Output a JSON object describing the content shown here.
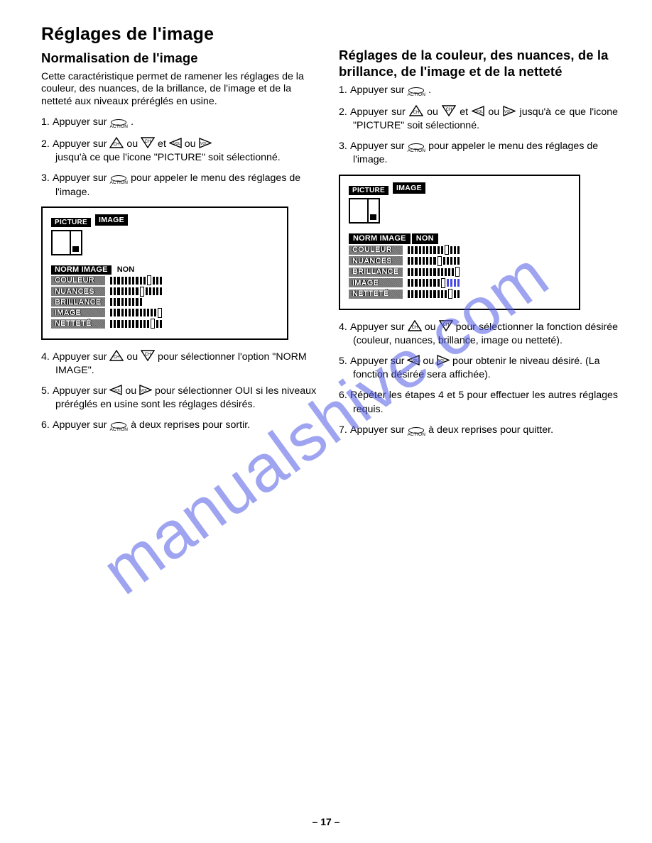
{
  "page_number": "– 17 –",
  "watermark": "manualshive.com",
  "icons": {
    "action_label": "ACTION"
  },
  "left": {
    "h1": "Réglages de l'image",
    "h2": "Normalisation de l'image",
    "intro": "Cette caractéristique permet de ramener les réglages de la couleur, des nuances, de la brillance, de l'image et de la netteté aux niveaux préréglés en usine.",
    "steps": {
      "s1a": "Appuyer sur ",
      "s1b": " .",
      "s2a": "Appuyer sur ",
      "s2b": " ou ",
      "s2c": "  et ",
      "s2d": " ou ",
      "s2e": " jusqu'à ce que l'icone \"PICTURE\" soit sélectionné.",
      "s3a": "Appuyer sur ",
      "s3b": "  pour appeler le menu des réglages de l'image.",
      "s4a": "Appuyer sur ",
      "s4b": " ou ",
      "s4c": "  pour sélectionner l'option \"NORM IMAGE\".",
      "s5a": "Appuyer sur ",
      "s5b": " ou  ",
      "s5c": "  pour sélectionner OUI si les niveaux préréglés en usine sont les réglages désirés.",
      "s6a": "Appuyer sur ",
      "s6b": "  à deux reprises pour sortir."
    },
    "osd": {
      "picture": "PICTURE",
      "image": "IMAGE",
      "norm": "NORM IMAGE",
      "non": "NON",
      "rows": [
        "COULEUR",
        "NUANCES",
        "BRILLANCE",
        "IMAGE",
        "NETTETÉ"
      ]
    }
  },
  "right": {
    "h2": "Réglages de la couleur, des nuances, de la brillance, de l'image et de la netteté",
    "steps": {
      "s1a": "Appuyer sur ",
      "s1b": " .",
      "s2a": "Appuyer sur ",
      "s2b": " ou ",
      "s2c": "  et ",
      "s2d": " ou ",
      "s2e": "  jusqu'à ce que l'icone \"PICTURE\" soit sélectionné.",
      "s3a": "Appuyer sur ",
      "s3b": " pour appeler le menu des réglages de l'image.",
      "s4a": "Appuyer sur ",
      "s4b": " ou ",
      "s4c": "  pour sélectionner la fonction désirée (couleur, nuances, brillance, image ou netteté).",
      "s5a": "Appuyer sur ",
      "s5b": " ou ",
      "s5c": "  pour obtenir le niveau désiré. (La fonction désirée sera affichée).",
      "s6": "Répéter les étapes 4 et 5 pour effectuer les autres réglages requis.",
      "s7a": "Appuyer sur ",
      "s7b": " à deux reprises pour quitter."
    },
    "osd": {
      "picture": "PICTURE",
      "image": "IMAGE",
      "norm": "NORM IMAGE",
      "non": "NON",
      "rows": [
        "COULEUR",
        "NUANCES",
        "BRILLANCE",
        "IMAGE",
        "NETTETÉ"
      ]
    }
  },
  "sliders": {
    "left": [
      {
        "pre": 10,
        "knob": true,
        "post": 3,
        "blue": []
      },
      {
        "pre": 8,
        "knob": true,
        "post": 5,
        "blue": []
      },
      {
        "pre": 9,
        "knob": false,
        "post": 0,
        "blue": []
      },
      {
        "pre": 13,
        "knob": true,
        "post": 0,
        "blue": []
      },
      {
        "pre": 11,
        "knob": true,
        "post": 2,
        "blue": []
      }
    ],
    "right": [
      {
        "pre": 10,
        "knob": true,
        "post": 3,
        "blue": []
      },
      {
        "pre": 8,
        "knob": true,
        "post": 5,
        "blue": []
      },
      {
        "pre": 13,
        "knob": true,
        "post": 0,
        "blue": []
      },
      {
        "pre": 9,
        "knob": true,
        "post": 4,
        "blue": [
          9,
          10,
          11,
          12
        ]
      },
      {
        "pre": 11,
        "knob": true,
        "post": 2,
        "blue": []
      }
    ]
  },
  "colors": {
    "text": "#000000",
    "background": "#ffffff",
    "osd_grey": "#7c7c7c",
    "watermark": "rgba(80,90,230,0.55)",
    "blue_tick": "#4a4ae6"
  }
}
